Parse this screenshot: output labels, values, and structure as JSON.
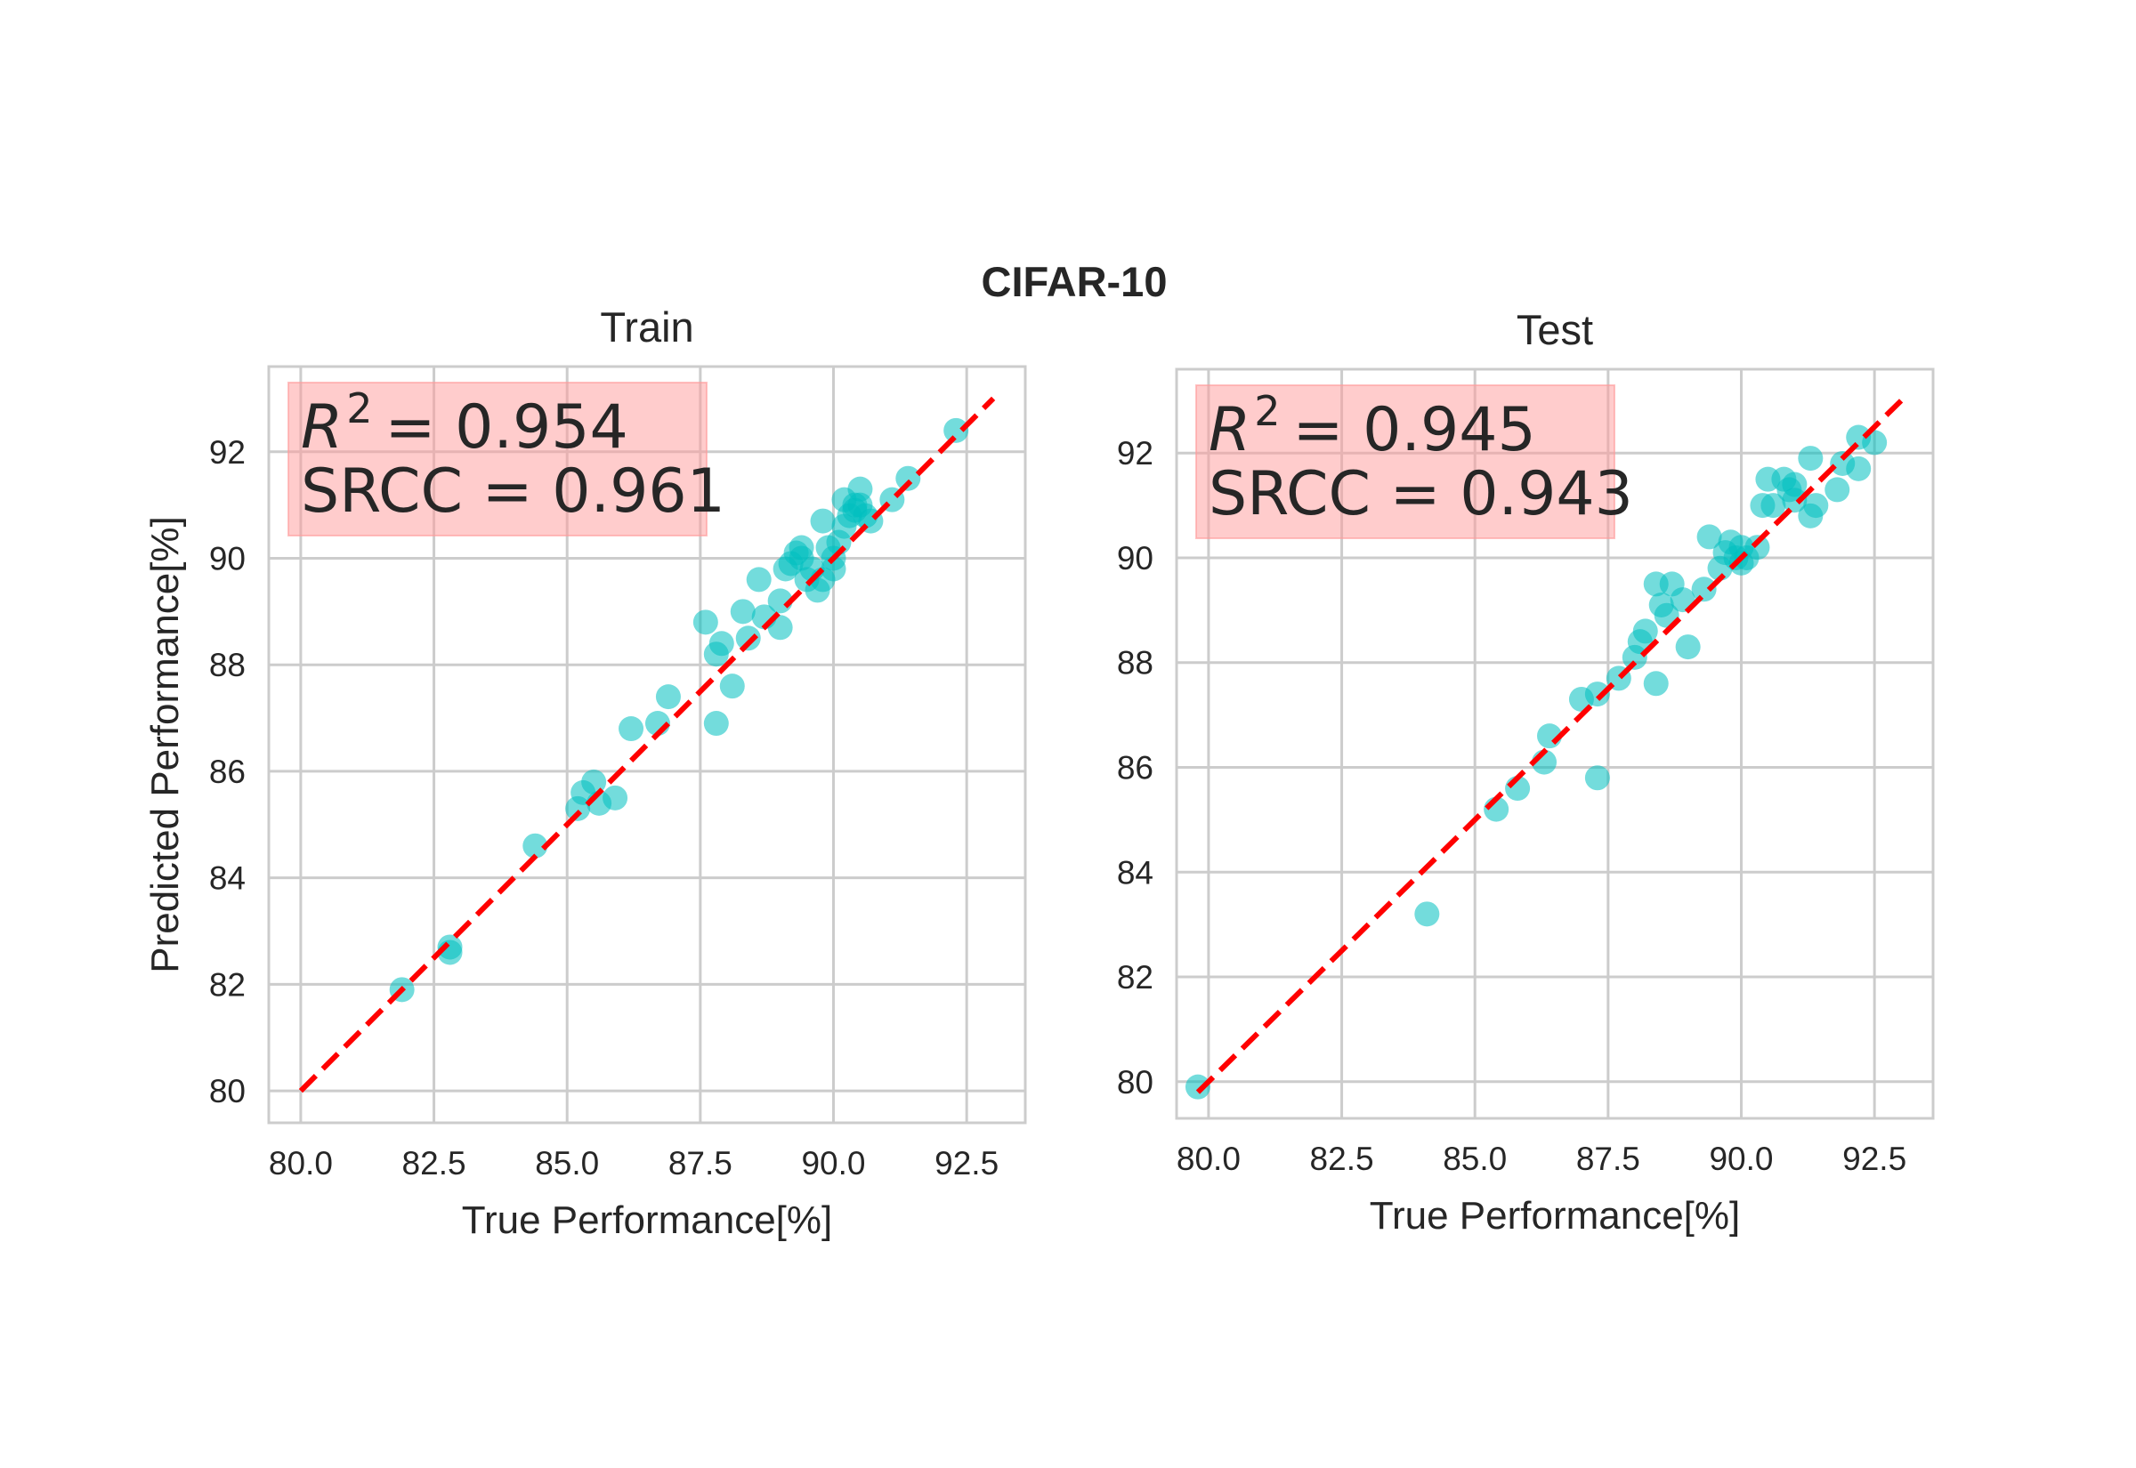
{
  "figure": {
    "suptitle": "CIFAR-10",
    "colors": {
      "points": "#00BFBF",
      "fit_line": "#FF0000",
      "stat_box": "#FF9999",
      "grid": "#CCCCCC",
      "background": "#FFFFFF"
    }
  },
  "chart_data": [
    {
      "type": "scatter",
      "title": "Train",
      "xlabel": "True Performance[%]",
      "ylabel": "Predicted Performance[%]",
      "xlim": [
        79.4,
        93.6
      ],
      "ylim": [
        79.4,
        93.6
      ],
      "xticks": [
        80.0,
        82.5,
        85.0,
        87.5,
        90.0,
        92.5
      ],
      "xtick_labels": [
        "80.0",
        "82.5",
        "85.0",
        "87.5",
        "90.0",
        "92.5"
      ],
      "yticks": [
        80,
        82,
        84,
        86,
        88,
        90,
        92
      ],
      "ytick_labels": [
        "80",
        "82",
        "84",
        "86",
        "88",
        "90",
        "92"
      ],
      "grid": true,
      "stats": {
        "r2_symbol": "R",
        "r2_exp": "2",
        "r2_text": "= 0.954",
        "srcc": "SRCC = 0.961"
      },
      "reference_line": {
        "x": [
          80.0,
          93.0
        ],
        "y": [
          80.0,
          93.0
        ],
        "style": "dashed"
      },
      "points": [
        [
          81.9,
          81.9
        ],
        [
          82.8,
          82.6
        ],
        [
          82.8,
          82.7
        ],
        [
          84.4,
          84.6
        ],
        [
          85.2,
          85.3
        ],
        [
          85.3,
          85.6
        ],
        [
          85.5,
          85.8
        ],
        [
          85.6,
          85.4
        ],
        [
          85.9,
          85.5
        ],
        [
          86.2,
          86.8
        ],
        [
          86.7,
          86.9
        ],
        [
          86.9,
          87.4
        ],
        [
          87.6,
          88.8
        ],
        [
          87.8,
          86.9
        ],
        [
          87.8,
          88.2
        ],
        [
          87.9,
          88.4
        ],
        [
          88.1,
          87.6
        ],
        [
          88.3,
          89.0
        ],
        [
          88.4,
          88.5
        ],
        [
          88.6,
          89.6
        ],
        [
          88.7,
          88.9
        ],
        [
          89.0,
          88.7
        ],
        [
          89.0,
          89.2
        ],
        [
          89.1,
          89.8
        ],
        [
          89.2,
          89.9
        ],
        [
          89.3,
          90.1
        ],
        [
          89.4,
          90.0
        ],
        [
          89.4,
          90.2
        ],
        [
          89.5,
          89.6
        ],
        [
          89.6,
          89.8
        ],
        [
          89.7,
          89.4
        ],
        [
          89.8,
          90.7
        ],
        [
          89.8,
          89.6
        ],
        [
          89.9,
          90.2
        ],
        [
          90.0,
          89.8
        ],
        [
          90.0,
          90.0
        ],
        [
          90.1,
          90.3
        ],
        [
          90.2,
          90.6
        ],
        [
          90.2,
          91.1
        ],
        [
          90.3,
          90.8
        ],
        [
          90.4,
          91.0
        ],
        [
          90.4,
          90.9
        ],
        [
          90.5,
          91.0
        ],
        [
          90.5,
          91.3
        ],
        [
          90.6,
          90.8
        ],
        [
          90.7,
          90.7
        ],
        [
          91.1,
          91.1
        ],
        [
          91.4,
          91.5
        ],
        [
          92.3,
          92.4
        ]
      ]
    },
    {
      "type": "scatter",
      "title": "Test",
      "xlabel": "True Performance[%]",
      "ylabel": "",
      "xlim": [
        79.4,
        93.6
      ],
      "ylim": [
        79.3,
        93.6
      ],
      "xticks": [
        80.0,
        82.5,
        85.0,
        87.5,
        90.0,
        92.5
      ],
      "xtick_labels": [
        "80.0",
        "82.5",
        "85.0",
        "87.5",
        "90.0",
        "92.5"
      ],
      "yticks": [
        80,
        82,
        84,
        86,
        88,
        90,
        92
      ],
      "ytick_labels": [
        "80",
        "82",
        "84",
        "86",
        "88",
        "90",
        "92"
      ],
      "grid": true,
      "stats": {
        "r2_symbol": "R",
        "r2_exp": "2",
        "r2_text": "= 0.945",
        "srcc": "SRCC = 0.943"
      },
      "reference_line": {
        "x": [
          79.8,
          93.0
        ],
        "y": [
          79.8,
          93.0
        ],
        "style": "dashed"
      },
      "points": [
        [
          79.8,
          79.9
        ],
        [
          84.1,
          83.2
        ],
        [
          85.4,
          85.2
        ],
        [
          85.8,
          85.6
        ],
        [
          86.3,
          86.1
        ],
        [
          86.4,
          86.6
        ],
        [
          87.0,
          87.3
        ],
        [
          87.3,
          85.8
        ],
        [
          87.3,
          87.4
        ],
        [
          87.7,
          87.7
        ],
        [
          88.0,
          88.1
        ],
        [
          88.1,
          88.4
        ],
        [
          88.2,
          88.6
        ],
        [
          88.4,
          87.6
        ],
        [
          88.4,
          89.5
        ],
        [
          88.5,
          89.1
        ],
        [
          88.6,
          88.9
        ],
        [
          88.7,
          89.5
        ],
        [
          88.9,
          89.2
        ],
        [
          89.0,
          88.3
        ],
        [
          89.3,
          89.4
        ],
        [
          89.4,
          90.4
        ],
        [
          89.6,
          89.8
        ],
        [
          89.7,
          90.1
        ],
        [
          89.8,
          90.3
        ],
        [
          89.9,
          90.0
        ],
        [
          90.0,
          90.2
        ],
        [
          90.0,
          89.9
        ],
        [
          90.1,
          90.0
        ],
        [
          90.3,
          90.2
        ],
        [
          90.4,
          91.0
        ],
        [
          90.5,
          91.5
        ],
        [
          90.6,
          91.0
        ],
        [
          90.8,
          91.5
        ],
        [
          90.9,
          91.3
        ],
        [
          91.0,
          91.1
        ],
        [
          91.0,
          91.4
        ],
        [
          91.3,
          91.9
        ],
        [
          91.3,
          90.8
        ],
        [
          91.4,
          91.0
        ],
        [
          91.8,
          91.3
        ],
        [
          91.9,
          91.8
        ],
        [
          92.2,
          92.3
        ],
        [
          92.2,
          91.7
        ],
        [
          92.5,
          92.2
        ]
      ]
    }
  ]
}
